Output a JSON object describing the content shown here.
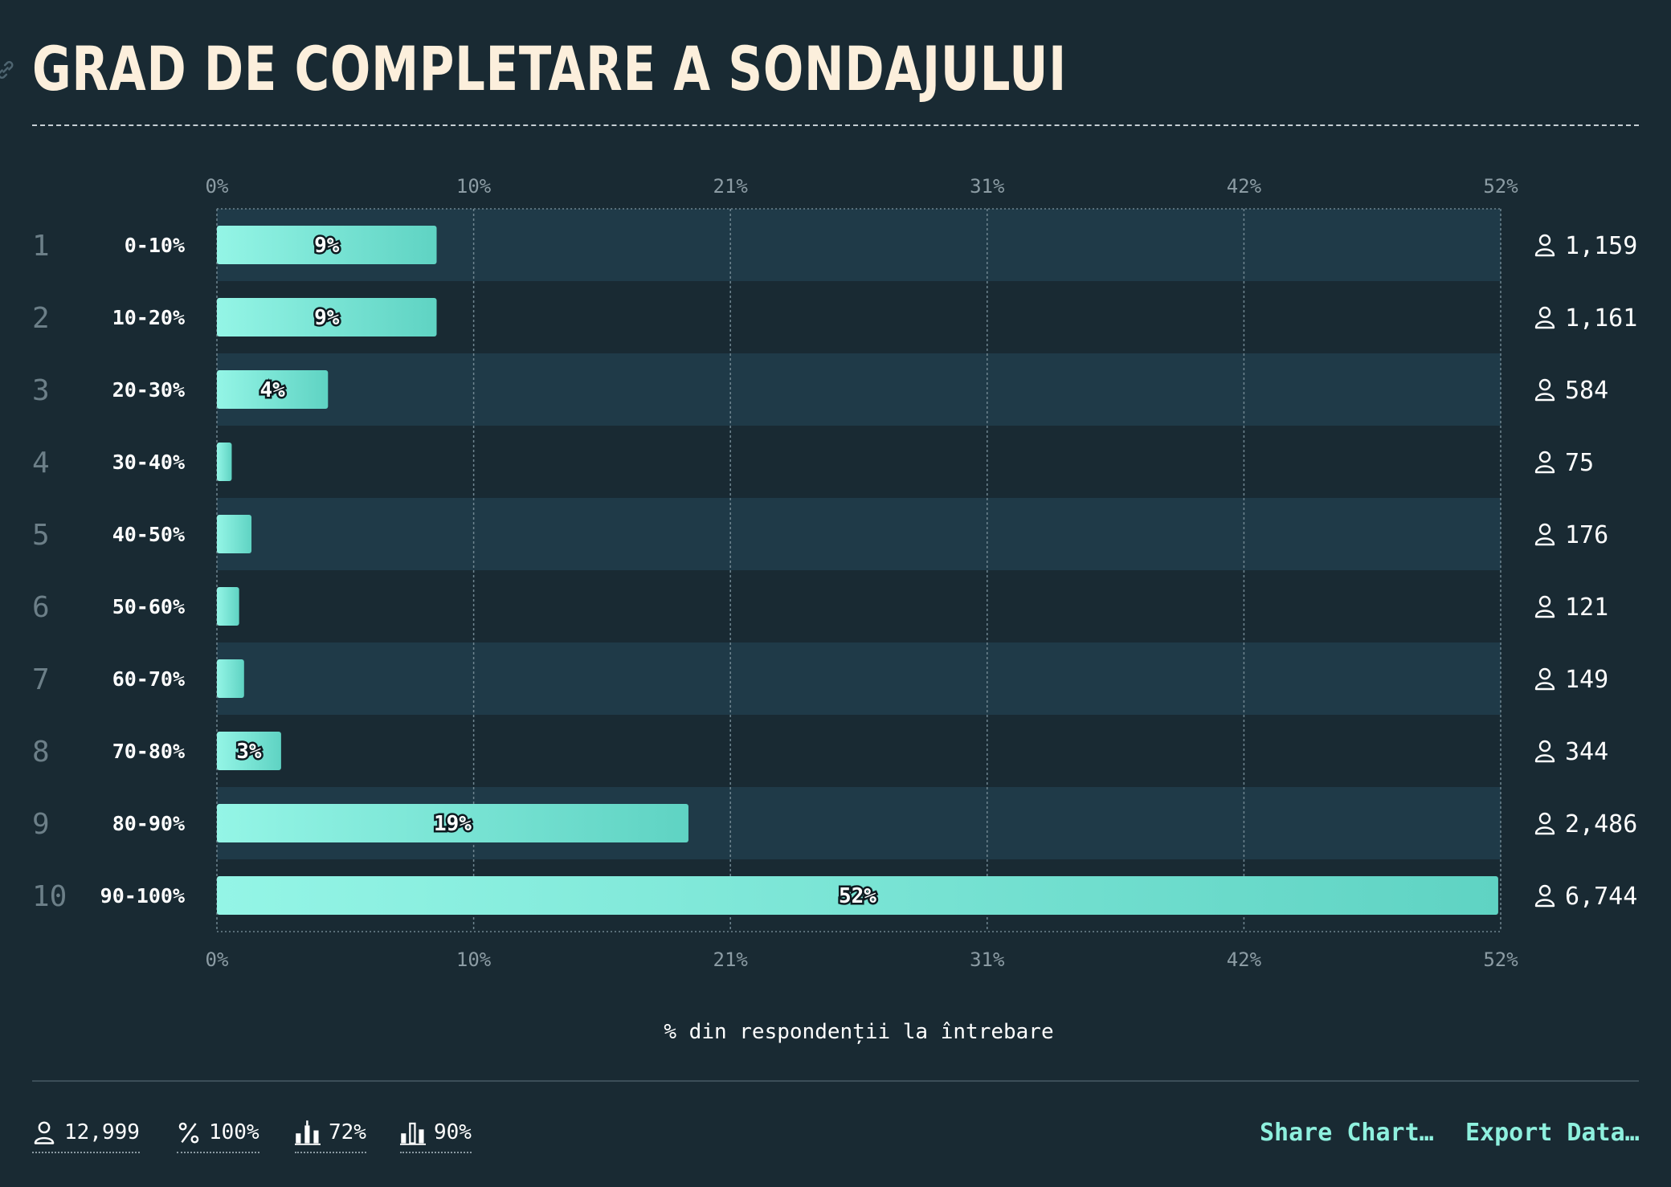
{
  "header": {
    "title": "GRAD DE COMPLETARE A SONDAJULUI"
  },
  "chart_data": {
    "type": "bar",
    "orientation": "horizontal",
    "title": "GRAD DE COMPLETARE A SONDAJULUI",
    "xlabel": "% din respondenții la întrebare",
    "ylabel": "",
    "xlim": [
      0,
      52
    ],
    "x_ticks": [
      "0%",
      "10%",
      "21%",
      "31%",
      "42%",
      "52%"
    ],
    "grid": true,
    "categories": [
      "0-10%",
      "10-20%",
      "20-30%",
      "30-40%",
      "40-50%",
      "50-60%",
      "60-70%",
      "70-80%",
      "80-90%",
      "90-100%"
    ],
    "ranks": [
      "1",
      "2",
      "3",
      "4",
      "5",
      "6",
      "7",
      "8",
      "9",
      "10"
    ],
    "values": [
      8.9,
      8.9,
      4.5,
      0.6,
      1.4,
      0.9,
      1.1,
      2.6,
      19.1,
      51.9
    ],
    "value_labels": [
      "9%",
      "9%",
      "4%",
      "",
      "",
      "",
      "",
      "3%",
      "19%",
      "52%"
    ],
    "counts": [
      "1,159",
      "1,161",
      "584",
      "75",
      "176",
      "121",
      "149",
      "344",
      "2,486",
      "6,744"
    ],
    "bar_color_start": "#94f5e6",
    "bar_color_end": "#5fd3c3"
  },
  "footer": {
    "stats": [
      {
        "icon": "person-icon",
        "value": "12,999"
      },
      {
        "icon": "percent-icon",
        "value": "100%"
      },
      {
        "icon": "candlestick-icon",
        "value": "72%"
      },
      {
        "icon": "bar-chart-icon",
        "value": "90%"
      }
    ],
    "share_label": "Share Chart…",
    "export_label": "Export Data…"
  },
  "colors": {
    "background": "#192a33",
    "row_band": "#1f3a48",
    "title": "#fcefdc",
    "accent": "#8ef0de"
  }
}
